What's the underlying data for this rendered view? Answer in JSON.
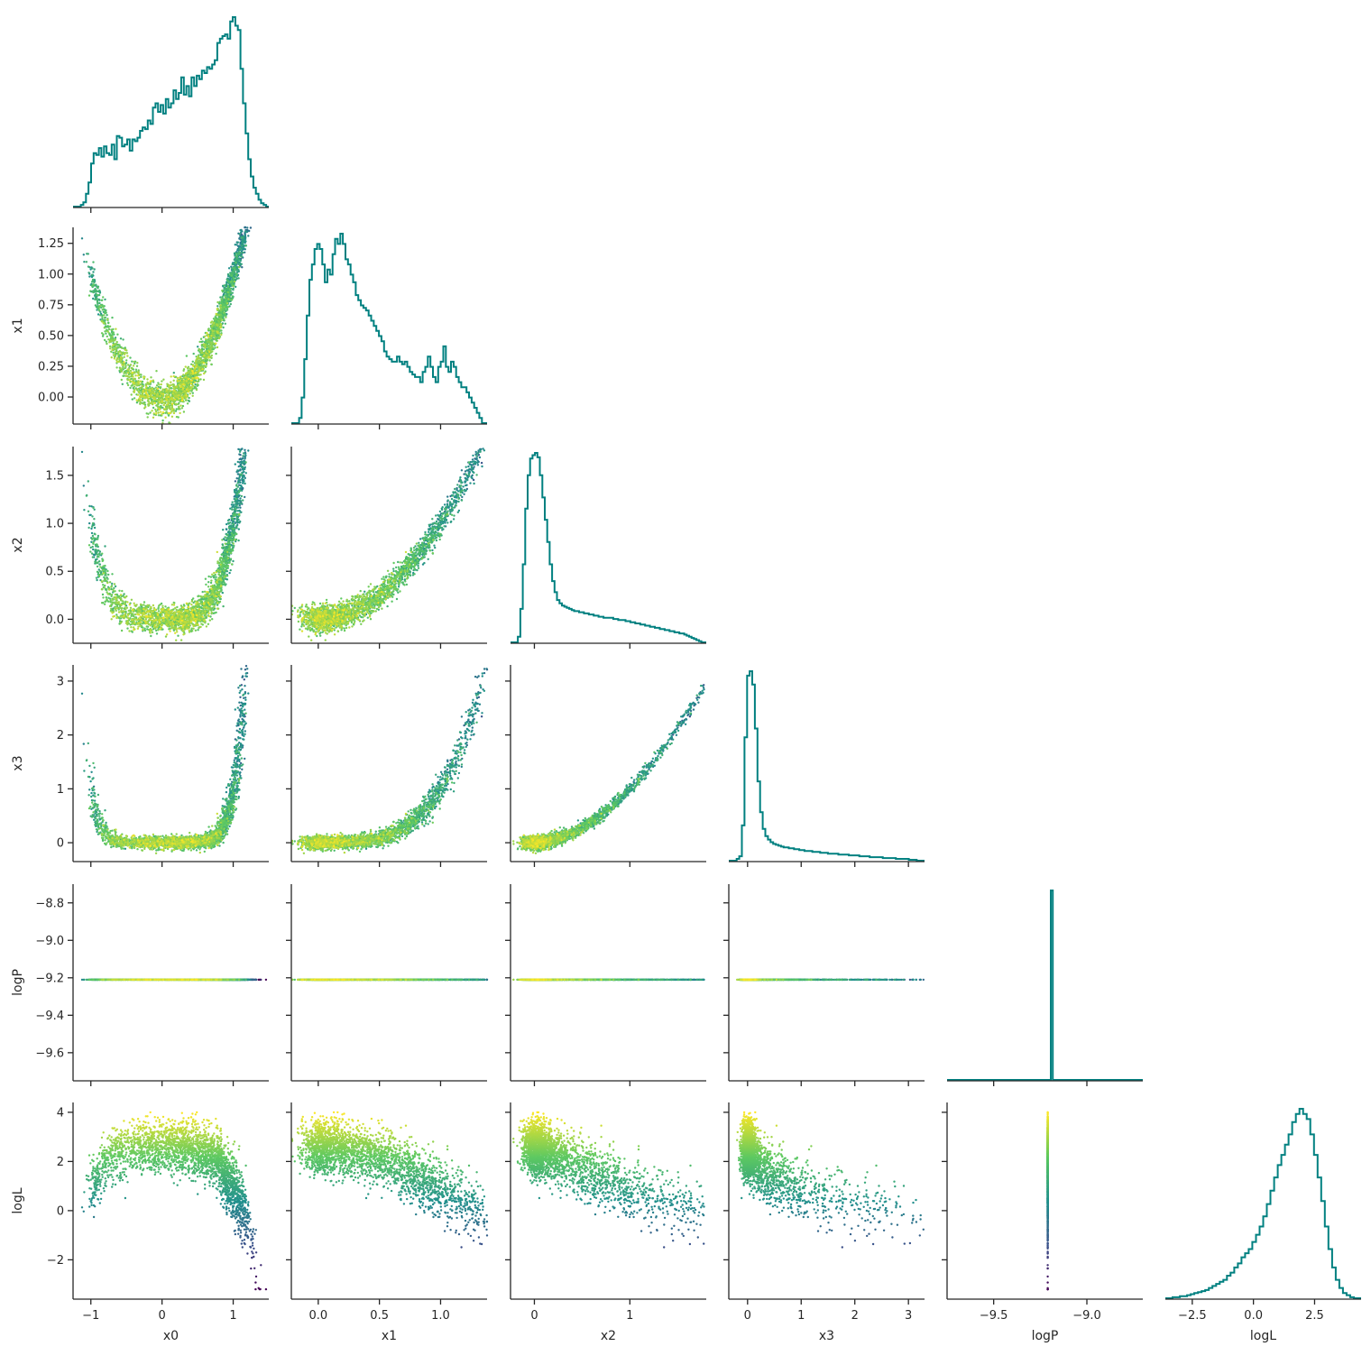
{
  "chart_data": {
    "type": "corner",
    "variables": [
      "x0",
      "x1",
      "x2",
      "x3",
      "logP",
      "logL"
    ],
    "colormap": "viridis",
    "colors": {
      "histogram": "#008080",
      "axis": "#262626",
      "background": "#ffffff",
      "viridis": [
        "#440154",
        "#3b528b",
        "#21918c",
        "#5ec962",
        "#fde725"
      ]
    },
    "axes": {
      "x0": {
        "range": [
          -1.25,
          1.5
        ],
        "ticks": [
          -1,
          0,
          1
        ],
        "tick_labels": [
          "−1",
          "0",
          "1"
        ]
      },
      "x1": {
        "range": [
          -0.22,
          1.38
        ],
        "ticks": [
          0.0,
          0.5,
          1.0
        ],
        "tick_labels": [
          "0.0",
          "0.5",
          "1.0"
        ],
        "y_ticks": [
          0.0,
          0.25,
          0.5,
          0.75,
          1.0,
          1.25
        ],
        "y_tick_labels": [
          "0.00",
          "0.25",
          "0.50",
          "0.75",
          "1.00",
          "1.25"
        ]
      },
      "x2": {
        "range": [
          -0.25,
          1.8
        ],
        "ticks": [
          0,
          1
        ],
        "tick_labels": [
          "0",
          "1"
        ],
        "y_ticks": [
          0.0,
          0.5,
          1.0,
          1.5
        ],
        "y_tick_labels": [
          "0.0",
          "0.5",
          "1.0",
          "1.5"
        ]
      },
      "x3": {
        "range": [
          -0.35,
          3.3
        ],
        "ticks": [
          0,
          1,
          2,
          3
        ],
        "tick_labels": [
          "0",
          "1",
          "2",
          "3"
        ]
      },
      "logP": {
        "range": [
          -9.75,
          -8.7
        ],
        "ticks": [
          -9.5,
          -9.0
        ],
        "tick_labels": [
          "−9.5",
          "−9.0"
        ],
        "y_ticks": [
          -9.6,
          -9.4,
          -9.2,
          -9.0,
          -8.8
        ],
        "y_tick_labels": [
          "−9.6",
          "−9.4",
          "−9.2",
          "−9.0",
          "−8.8"
        ]
      },
      "logL": {
        "range": [
          -3.6,
          4.4
        ],
        "ticks": [
          -2.5,
          0.0,
          2.5
        ],
        "tick_labels": [
          "−2.5",
          "0.0",
          "2.5"
        ],
        "y_ticks": [
          -2,
          0,
          2,
          4
        ],
        "y_tick_labels": [
          "−2",
          "0",
          "2",
          "4"
        ]
      }
    },
    "histograms": {
      "x0": {
        "edges": [
          -1.25,
          1.5
        ],
        "counts": [
          0,
          0,
          0,
          2,
          5,
          15,
          28,
          50,
          62,
          60,
          68,
          58,
          70,
          62,
          60,
          72,
          55,
          82,
          80,
          70,
          72,
          78,
          65,
          78,
          76,
          80,
          88,
          92,
          90,
          100,
          96,
          115,
          120,
          110,
          118,
          108,
          125,
          115,
          120,
          135,
          125,
          132,
          150,
          130,
          140,
          128,
          150,
          140,
          152,
          148,
          158,
          155,
          162,
          160,
          165,
          170,
          190,
          195,
          198,
          200,
          195,
          215,
          220,
          210,
          205,
          160,
          120,
          85,
          55,
          35,
          22,
          15,
          8,
          4,
          2,
          0
        ]
      },
      "x1": {
        "edges": [
          -0.22,
          1.38
        ],
        "counts": [
          0,
          0,
          0,
          2,
          10,
          25,
          42,
          56,
          62,
          68,
          70,
          68,
          62,
          55,
          60,
          58,
          66,
          72,
          70,
          74,
          70,
          64,
          62,
          58,
          55,
          50,
          48,
          46,
          45,
          44,
          42,
          40,
          38,
          36,
          34,
          32,
          28,
          26,
          25,
          24,
          24,
          26,
          24,
          23,
          24,
          22,
          20,
          19,
          18,
          18,
          16,
          20,
          22,
          26,
          22,
          18,
          16,
          22,
          24,
          30,
          22,
          20,
          24,
          22,
          18,
          16,
          14,
          14,
          12,
          10,
          8,
          6,
          4,
          2,
          0,
          0
        ]
      },
      "x2": {
        "edges": [
          -0.25,
          1.8
        ],
        "counts": [
          0,
          0,
          0,
          5,
          30,
          70,
          120,
          150,
          165,
          168,
          170,
          166,
          150,
          130,
          110,
          90,
          70,
          55,
          45,
          38,
          35,
          33,
          32,
          31,
          30,
          29,
          28,
          28,
          27,
          27,
          26,
          26,
          25,
          25,
          24,
          24,
          23,
          23,
          22,
          22,
          22,
          22,
          21,
          21,
          20,
          20,
          20,
          19,
          19,
          18,
          18,
          17,
          17,
          16,
          16,
          15,
          15,
          14,
          14,
          13,
          13,
          12,
          12,
          11,
          11,
          10,
          10,
          9,
          9,
          8,
          8,
          7,
          6,
          5,
          4,
          3,
          2,
          1,
          0,
          0
        ]
      },
      "x3": {
        "edges": [
          -0.35,
          3.3
        ],
        "counts": [
          0,
          0,
          0,
          2,
          5,
          40,
          140,
          210,
          215,
          200,
          150,
          90,
          55,
          36,
          28,
          24,
          21,
          19,
          18,
          17,
          16,
          15,
          15,
          14,
          14,
          13,
          13,
          12,
          12,
          11,
          11,
          11,
          10,
          10,
          10,
          9,
          9,
          9,
          8,
          8,
          8,
          8,
          7,
          7,
          7,
          7,
          6,
          6,
          6,
          6,
          5,
          5,
          5,
          5,
          4,
          4,
          4,
          4,
          4,
          3,
          3,
          3,
          3,
          3,
          2,
          2,
          2,
          2,
          2,
          1,
          1,
          1,
          0,
          0,
          0
        ]
      },
      "logP": {
        "edges": [
          -9.75,
          -8.7
        ],
        "counts": [
          0,
          0,
          0,
          0,
          0,
          0,
          0,
          0,
          0,
          0,
          0,
          0,
          0,
          0,
          0,
          0,
          0,
          0,
          0,
          0,
          0,
          0,
          0,
          0,
          0,
          0,
          0,
          0,
          0,
          0,
          0,
          0,
          0,
          0,
          0,
          0,
          0,
          0,
          0,
          0,
          0,
          0,
          0,
          0,
          0,
          0,
          0,
          0,
          0,
          0,
          0,
          0,
          0,
          100,
          0,
          0,
          0,
          0,
          0,
          0,
          0,
          0,
          0,
          0,
          0,
          0,
          0,
          0,
          0,
          0,
          0,
          0,
          0,
          0,
          0,
          0,
          0,
          0,
          0,
          0,
          0,
          0,
          0,
          0,
          0,
          0,
          0,
          0,
          0,
          0,
          0,
          0,
          0,
          0,
          0,
          0,
          0,
          0,
          0,
          0
        ]
      },
      "logL": {
        "edges": [
          -3.6,
          4.4
        ],
        "counts": [
          0,
          0,
          1,
          1,
          2,
          2,
          3,
          4,
          5,
          6,
          7,
          8,
          10,
          12,
          14,
          16,
          18,
          22,
          25,
          30,
          34,
          40,
          44,
          48,
          55,
          62,
          70,
          80,
          92,
          105,
          118,
          130,
          140,
          150,
          160,
          172,
          180,
          185,
          180,
          175,
          160,
          140,
          118,
          95,
          70,
          48,
          30,
          18,
          10,
          5,
          3,
          1,
          0,
          0
        ]
      }
    },
    "scatter_color": "logL"
  }
}
